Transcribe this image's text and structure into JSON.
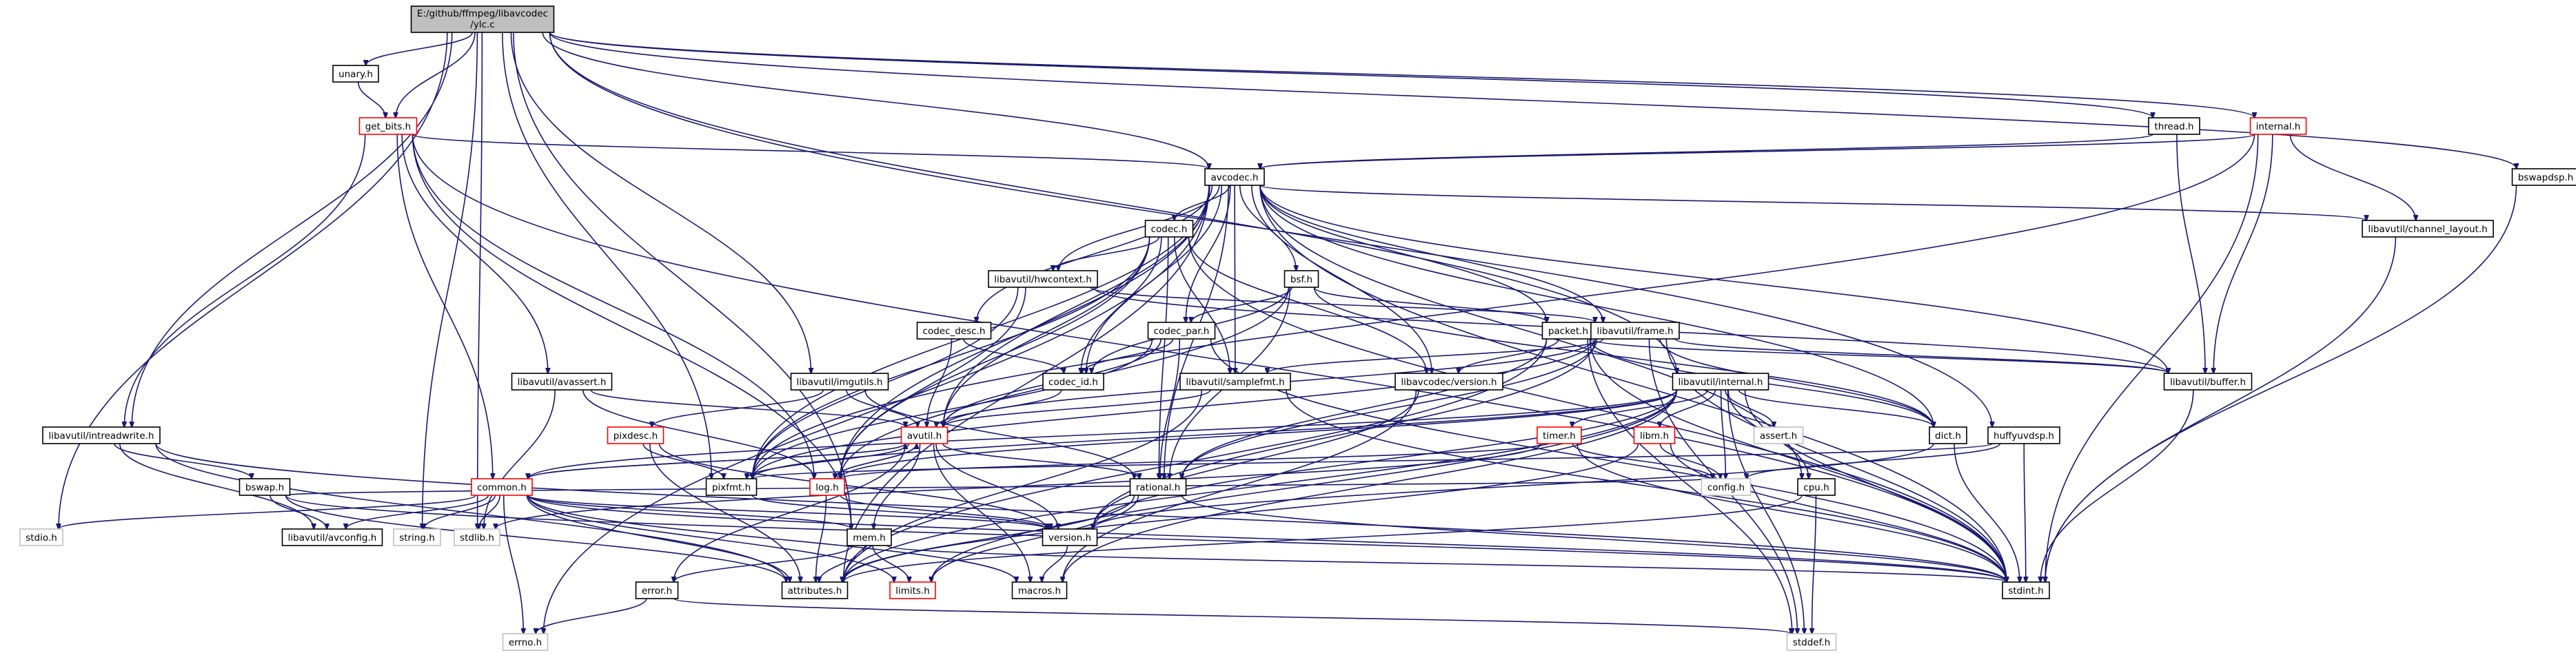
{
  "colors": {
    "edge": "#191970",
    "root_fill": "#bfbfbf",
    "root_border": "#000000",
    "documented_border": "#000000",
    "undocumented_border": "#ff0000",
    "system_header_border": "#bfbfbf",
    "node_fill": "#ffffff"
  },
  "nodes": [
    {
      "id": "root",
      "label": "E:/github/ffmpeg/libavcodec/ylc.c",
      "kind": "root"
    },
    {
      "id": "unary",
      "label": "unary.h",
      "kind": "documented"
    },
    {
      "id": "get_bits",
      "label": "get_bits.h",
      "kind": "undocumented"
    },
    {
      "id": "thread",
      "label": "thread.h",
      "kind": "documented"
    },
    {
      "id": "internal_h",
      "label": "internal.h",
      "kind": "undocumented"
    },
    {
      "id": "bswapdsp",
      "label": "bswapdsp.h",
      "kind": "documented"
    },
    {
      "id": "avcodec",
      "label": "avcodec.h",
      "kind": "documented"
    },
    {
      "id": "codec",
      "label": "codec.h",
      "kind": "documented"
    },
    {
      "id": "channel_layout",
      "label": "libavutil/channel_layout.h",
      "kind": "documented"
    },
    {
      "id": "hwcontext",
      "label": "libavutil/hwcontext.h",
      "kind": "documented"
    },
    {
      "id": "bsf",
      "label": "bsf.h",
      "kind": "documented"
    },
    {
      "id": "codec_desc",
      "label": "codec_desc.h",
      "kind": "documented"
    },
    {
      "id": "codec_par",
      "label": "codec_par.h",
      "kind": "documented"
    },
    {
      "id": "packet",
      "label": "packet.h",
      "kind": "documented"
    },
    {
      "id": "frame",
      "label": "libavutil/frame.h",
      "kind": "documented"
    },
    {
      "id": "avassert",
      "label": "libavutil/avassert.h",
      "kind": "documented"
    },
    {
      "id": "imgutils",
      "label": "libavutil/imgutils.h",
      "kind": "documented"
    },
    {
      "id": "codec_id",
      "label": "codec_id.h",
      "kind": "documented"
    },
    {
      "id": "samplefmt",
      "label": "libavutil/samplefmt.h",
      "kind": "documented"
    },
    {
      "id": "lavc_version",
      "label": "libavcodec/version.h",
      "kind": "documented"
    },
    {
      "id": "buffer",
      "label": "libavutil/buffer.h",
      "kind": "documented"
    },
    {
      "id": "lavu_internal",
      "label": "libavutil/internal.h",
      "kind": "documented"
    },
    {
      "id": "intreadwrite",
      "label": "libavutil/intreadwrite.h",
      "kind": "documented"
    },
    {
      "id": "pixdesc",
      "label": "pixdesc.h",
      "kind": "undocumented"
    },
    {
      "id": "avutil",
      "label": "avutil.h",
      "kind": "undocumented"
    },
    {
      "id": "timer",
      "label": "timer.h",
      "kind": "undocumented"
    },
    {
      "id": "libm",
      "label": "libm.h",
      "kind": "undocumented"
    },
    {
      "id": "assert",
      "label": "assert.h",
      "kind": "system"
    },
    {
      "id": "dict",
      "label": "dict.h",
      "kind": "documented"
    },
    {
      "id": "huffyuvdsp",
      "label": "huffyuvdsp.h",
      "kind": "documented"
    },
    {
      "id": "bswap",
      "label": "bswap.h",
      "kind": "documented"
    },
    {
      "id": "common",
      "label": "common.h",
      "kind": "undocumented"
    },
    {
      "id": "pixfmt",
      "label": "pixfmt.h",
      "kind": "documented"
    },
    {
      "id": "log",
      "label": "log.h",
      "kind": "undocumented"
    },
    {
      "id": "rational",
      "label": "rational.h",
      "kind": "documented"
    },
    {
      "id": "config",
      "label": "config.h",
      "kind": "system"
    },
    {
      "id": "cpu",
      "label": "cpu.h",
      "kind": "documented"
    },
    {
      "id": "stdio",
      "label": "stdio.h",
      "kind": "system"
    },
    {
      "id": "avconfig",
      "label": "libavutil/avconfig.h",
      "kind": "documented"
    },
    {
      "id": "string",
      "label": "string.h",
      "kind": "system"
    },
    {
      "id": "stdlib",
      "label": "stdlib.h",
      "kind": "system"
    },
    {
      "id": "version",
      "label": "version.h",
      "kind": "documented"
    },
    {
      "id": "mem",
      "label": "mem.h",
      "kind": "documented"
    },
    {
      "id": "attributes",
      "label": "attributes.h",
      "kind": "documented"
    },
    {
      "id": "limits",
      "label": "limits.h",
      "kind": "undocumented"
    },
    {
      "id": "macros",
      "label": "macros.h",
      "kind": "documented"
    },
    {
      "id": "stdint",
      "label": "stdint.h",
      "kind": "documented"
    },
    {
      "id": "error",
      "label": "error.h",
      "kind": "documented"
    },
    {
      "id": "errno",
      "label": "errno.h",
      "kind": "system"
    },
    {
      "id": "stddef",
      "label": "stddef.h",
      "kind": "system"
    }
  ],
  "edges": [
    [
      "root",
      "unary"
    ],
    [
      "root",
      "get_bits"
    ],
    [
      "root",
      "thread"
    ],
    [
      "root",
      "internal_h"
    ],
    [
      "root",
      "bswapdsp"
    ],
    [
      "root",
      "avcodec"
    ],
    [
      "root",
      "huffyuvdsp"
    ],
    [
      "root",
      "lavu_internal"
    ],
    [
      "root",
      "imgutils"
    ],
    [
      "root",
      "pixfmt"
    ],
    [
      "root",
      "intreadwrite"
    ],
    [
      "root",
      "stdio"
    ],
    [
      "root",
      "string"
    ],
    [
      "root",
      "stdlib"
    ],
    [
      "root",
      "mem"
    ],
    [
      "unary",
      "get_bits"
    ],
    [
      "get_bits",
      "avcodec"
    ],
    [
      "get_bits",
      "intreadwrite"
    ],
    [
      "get_bits",
      "avassert"
    ],
    [
      "get_bits",
      "common"
    ],
    [
      "get_bits",
      "log"
    ],
    [
      "get_bits",
      "stdint"
    ],
    [
      "get_bits",
      "mem"
    ],
    [
      "thread",
      "avcodec"
    ],
    [
      "thread",
      "buffer"
    ],
    [
      "internal_h",
      "avcodec"
    ],
    [
      "internal_h",
      "buffer"
    ],
    [
      "internal_h",
      "channel_layout"
    ],
    [
      "internal_h",
      "stdint"
    ],
    [
      "internal_h",
      "pixfmt"
    ],
    [
      "bswapdsp",
      "stdint"
    ],
    [
      "avcodec",
      "codec"
    ],
    [
      "avcodec",
      "channel_layout"
    ],
    [
      "avcodec",
      "hwcontext"
    ],
    [
      "avcodec",
      "bsf"
    ],
    [
      "avcodec",
      "codec_desc"
    ],
    [
      "avcodec",
      "codec_par"
    ],
    [
      "avcodec",
      "packet"
    ],
    [
      "avcodec",
      "frame"
    ],
    [
      "avcodec",
      "samplefmt"
    ],
    [
      "avcodec",
      "codec_id"
    ],
    [
      "avcodec",
      "lavc_version"
    ],
    [
      "avcodec",
      "buffer"
    ],
    [
      "avcodec",
      "dict"
    ],
    [
      "avcodec",
      "avutil"
    ],
    [
      "avcodec",
      "log"
    ],
    [
      "avcodec",
      "pixfmt"
    ],
    [
      "avcodec",
      "rational"
    ],
    [
      "avcodec",
      "attributes"
    ],
    [
      "avcodec",
      "cpu"
    ],
    [
      "avcodec",
      "stdint"
    ],
    [
      "avcodec",
      "errno"
    ],
    [
      "codec",
      "hwcontext"
    ],
    [
      "codec",
      "samplefmt"
    ],
    [
      "codec",
      "codec_id"
    ],
    [
      "codec",
      "lavc_version"
    ],
    [
      "codec",
      "log"
    ],
    [
      "codec",
      "rational"
    ],
    [
      "codec",
      "avutil"
    ],
    [
      "codec",
      "pixfmt"
    ],
    [
      "codec",
      "stdint"
    ],
    [
      "channel_layout",
      "stdint"
    ],
    [
      "hwcontext",
      "buffer"
    ],
    [
      "hwcontext",
      "frame"
    ],
    [
      "hwcontext",
      "log"
    ],
    [
      "hwcontext",
      "pixfmt"
    ],
    [
      "bsf",
      "codec_par"
    ],
    [
      "bsf",
      "packet"
    ],
    [
      "bsf",
      "codec_id"
    ],
    [
      "bsf",
      "dict"
    ],
    [
      "bsf",
      "log"
    ],
    [
      "bsf",
      "rational"
    ],
    [
      "codec_desc",
      "codec_id"
    ],
    [
      "codec_desc",
      "avutil"
    ],
    [
      "codec_par",
      "codec_id"
    ],
    [
      "codec_par",
      "avutil"
    ],
    [
      "codec_par",
      "rational"
    ],
    [
      "codec_par",
      "pixfmt"
    ],
    [
      "codec_par",
      "stdint"
    ],
    [
      "packet",
      "buffer"
    ],
    [
      "packet",
      "dict"
    ],
    [
      "packet",
      "attributes"
    ],
    [
      "packet",
      "rational"
    ],
    [
      "packet",
      "lavc_version"
    ],
    [
      "packet",
      "stdint"
    ],
    [
      "packet",
      "stddef"
    ],
    [
      "frame",
      "buffer"
    ],
    [
      "frame",
      "dict"
    ],
    [
      "frame",
      "samplefmt"
    ],
    [
      "frame",
      "avutil"
    ],
    [
      "frame",
      "pixfmt"
    ],
    [
      "frame",
      "rational"
    ],
    [
      "frame",
      "version"
    ],
    [
      "frame",
      "stdint"
    ],
    [
      "frame",
      "stddef"
    ],
    [
      "avassert",
      "avutil"
    ],
    [
      "avassert",
      "log"
    ],
    [
      "avassert",
      "stdlib"
    ],
    [
      "imgutils",
      "avutil"
    ],
    [
      "imgutils",
      "pixdesc"
    ],
    [
      "imgutils",
      "rational"
    ],
    [
      "codec_id",
      "avutil"
    ],
    [
      "samplefmt",
      "avutil"
    ],
    [
      "samplefmt",
      "attributes"
    ],
    [
      "samplefmt",
      "stdint"
    ],
    [
      "lavc_version",
      "version"
    ],
    [
      "lavc_version",
      "macros"
    ],
    [
      "buffer",
      "stdint"
    ],
    [
      "lavu_internal",
      "timer"
    ],
    [
      "lavu_internal",
      "libm"
    ],
    [
      "lavu_internal",
      "assert"
    ],
    [
      "lavu_internal",
      "dict"
    ],
    [
      "lavu_internal",
      "pixfmt"
    ],
    [
      "lavu_internal",
      "config"
    ],
    [
      "lavu_internal",
      "cpu"
    ],
    [
      "lavu_internal",
      "macros"
    ],
    [
      "lavu_internal",
      "stddef"
    ],
    [
      "lavu_internal",
      "attributes"
    ],
    [
      "lavu_internal",
      "limits"
    ],
    [
      "lavu_internal",
      "stdint"
    ],
    [
      "lavu_internal",
      "common"
    ],
    [
      "lavu_internal",
      "version"
    ],
    [
      "lavu_internal",
      "log"
    ],
    [
      "intreadwrite",
      "avconfig"
    ],
    [
      "intreadwrite",
      "attributes"
    ],
    [
      "intreadwrite",
      "bswap"
    ],
    [
      "intreadwrite",
      "stdint"
    ],
    [
      "pixdesc",
      "attributes"
    ],
    [
      "pixdesc",
      "pixfmt"
    ],
    [
      "pixdesc",
      "version"
    ],
    [
      "avutil",
      "common"
    ],
    [
      "avutil",
      "error"
    ],
    [
      "avutil",
      "version"
    ],
    [
      "avutil",
      "macros"
    ],
    [
      "avutil",
      "mem"
    ],
    [
      "avutil",
      "rational"
    ],
    [
      "avutil",
      "log"
    ],
    [
      "avutil",
      "pixfmt"
    ],
    [
      "timer",
      "config"
    ],
    [
      "timer",
      "log"
    ],
    [
      "timer",
      "stdlib"
    ],
    [
      "timer",
      "stdint"
    ],
    [
      "libm",
      "config"
    ],
    [
      "libm",
      "attributes"
    ],
    [
      "libm",
      "stdint"
    ],
    [
      "dict",
      "stdint"
    ],
    [
      "dict",
      "version"
    ],
    [
      "huffyuvdsp",
      "stdint"
    ],
    [
      "huffyuvdsp",
      "pixfmt"
    ],
    [
      "huffyuvdsp",
      "config"
    ],
    [
      "bswap",
      "avconfig"
    ],
    [
      "bswap",
      "attributes"
    ],
    [
      "bswap",
      "config"
    ],
    [
      "bswap",
      "stdint"
    ],
    [
      "common",
      "avconfig"
    ],
    [
      "common",
      "string"
    ],
    [
      "common",
      "stdlib"
    ],
    [
      "common",
      "stdio"
    ],
    [
      "common",
      "errno"
    ],
    [
      "common",
      "attributes"
    ],
    [
      "common",
      "macros"
    ],
    [
      "common",
      "version"
    ],
    [
      "common",
      "mem"
    ],
    [
      "common",
      "stdint"
    ],
    [
      "common",
      "limits"
    ],
    [
      "common",
      "avutil"
    ],
    [
      "pixfmt",
      "version"
    ],
    [
      "log",
      "attributes"
    ],
    [
      "log",
      "avutil"
    ],
    [
      "log",
      "version"
    ],
    [
      "rational",
      "attributes"
    ],
    [
      "rational",
      "limits"
    ],
    [
      "rational",
      "stdint"
    ],
    [
      "cpu",
      "attributes"
    ],
    [
      "cpu",
      "stddef"
    ],
    [
      "version",
      "macros"
    ],
    [
      "mem",
      "attributes"
    ],
    [
      "mem",
      "error"
    ],
    [
      "mem",
      "limits"
    ],
    [
      "mem",
      "stdint"
    ],
    [
      "error",
      "errno"
    ],
    [
      "error",
      "stddef"
    ]
  ]
}
